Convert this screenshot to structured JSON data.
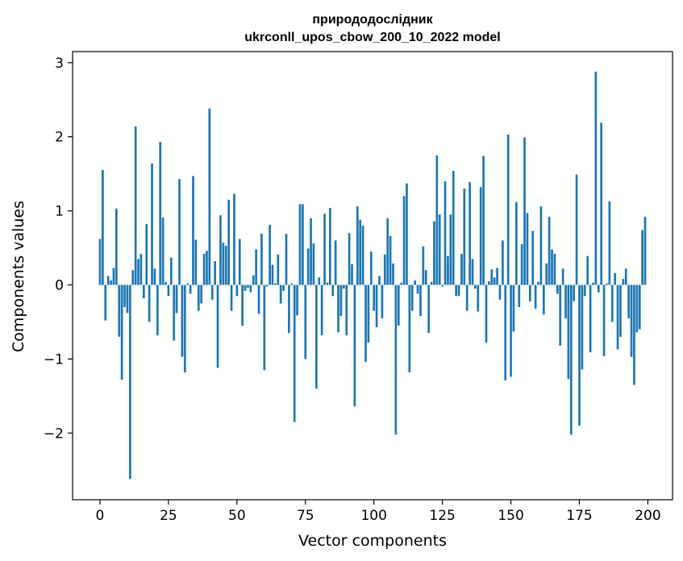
{
  "chart_data": {
    "type": "bar",
    "title_line1": "природодослідник",
    "title_line2": "ukrconll_upos_cbow_200_10_2022 model",
    "xlabel": "Vector components",
    "ylabel": "Components values",
    "xlim": [
      -10,
      209
    ],
    "ylim": [
      -2.9,
      3.15
    ],
    "xticks": [
      0,
      25,
      50,
      75,
      100,
      125,
      150,
      175,
      200
    ],
    "xtick_labels": [
      "0",
      "25",
      "50",
      "75",
      "100",
      "125",
      "150",
      "175",
      "200"
    ],
    "yticks": [
      -2,
      -1,
      0,
      1,
      2,
      3
    ],
    "ytick_labels": [
      "−2",
      "−1",
      "0",
      "1",
      "2",
      "3"
    ],
    "grid": false,
    "bar_color": "#1f77b4",
    "values": [
      0.62,
      1.55,
      -0.48,
      0.12,
      0.06,
      0.23,
      1.03,
      -0.7,
      -1.28,
      -0.3,
      -0.38,
      -2.62,
      0.2,
      2.14,
      0.35,
      0.42,
      -0.18,
      0.82,
      -0.5,
      1.64,
      0.22,
      -0.68,
      1.93,
      0.91,
      0.04,
      -0.15,
      0.37,
      -0.75,
      -0.38,
      1.43,
      -0.97,
      -1.18,
      0.02,
      -0.12,
      1.47,
      0.61,
      -0.35,
      -0.25,
      0.42,
      0.46,
      2.38,
      -0.2,
      0.32,
      -1.12,
      0.94,
      0.57,
      0.53,
      1.15,
      -0.35,
      1.23,
      -0.15,
      0.62,
      -0.55,
      -0.08,
      -0.04,
      -0.1,
      0.13,
      0.48,
      -0.39,
      0.69,
      -1.15,
      -0.02,
      0.81,
      0.27,
      0.02,
      0.41,
      -0.25,
      -0.08,
      0.69,
      -0.65,
      0.02,
      -1.85,
      -0.41,
      1.09,
      1.09,
      -1.0,
      0.49,
      0.9,
      0.56,
      -1.4,
      0.1,
      -0.68,
      0.96,
      0.03,
      1.04,
      -0.15,
      0.6,
      -0.64,
      -0.42,
      -0.05,
      -0.68,
      0.7,
      0.28,
      -1.64,
      1.06,
      0.88,
      0.8,
      -1.04,
      -0.78,
      0.45,
      -0.35,
      -0.57,
      0.12,
      -0.45,
      0.41,
      0.9,
      0.66,
      0.29,
      -2.02,
      -0.55,
      0.03,
      1.2,
      1.37,
      -1.18,
      -0.35,
      0.06,
      -0.12,
      -0.42,
      0.52,
      0.2,
      -0.65,
      0.04,
      0.86,
      1.75,
      0.95,
      -0.02,
      1.4,
      0.39,
      0.95,
      1.54,
      -0.15,
      -0.15,
      0.42,
      1.3,
      -0.35,
      1.39,
      0.35,
      -0.05,
      -0.36,
      1.32,
      1.74,
      -0.78,
      0.05,
      0.21,
      0.1,
      0.23,
      -0.2,
      0.6,
      -1.29,
      2.03,
      -1.24,
      -0.63,
      1.12,
      -0.3,
      0.55,
      1.99,
      0.97,
      -0.22,
      0.73,
      -0.32,
      0.04,
      1.06,
      -0.4,
      0.29,
      0.92,
      0.48,
      0.42,
      -0.12,
      -0.82,
      0.22,
      -0.45,
      -1.27,
      -2.02,
      -0.22,
      1.49,
      -1.9,
      -1.14,
      -0.15,
      0.39,
      -0.91,
      0.03,
      2.88,
      -0.1,
      2.19,
      -0.96,
      0.02,
      1.13,
      -0.5,
      0.16,
      -0.87,
      -0.7,
      0.08,
      0.22,
      -0.45,
      -0.97,
      -1.35,
      -0.64,
      -0.6,
      0.74,
      0.92
    ]
  }
}
